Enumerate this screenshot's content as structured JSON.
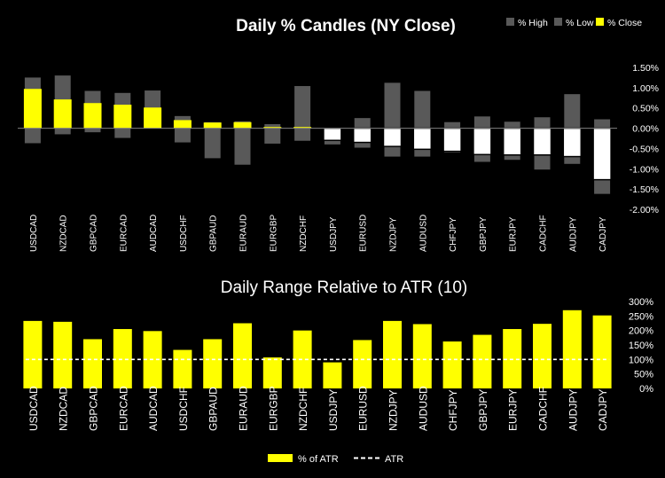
{
  "chart_data": [
    {
      "type": "candlestick-bar",
      "title": "Daily % Candles (NY Close)",
      "legend": [
        "% High",
        "% Low",
        "% Close"
      ],
      "legend_position": "top-right",
      "colors": {
        "range": "#595959",
        "positive_close": "#FFFF00",
        "negative_close": "#FFFFFF",
        "negative_outline": "#000000",
        "text": "#FFFFFF",
        "background": "#000000"
      },
      "categories": [
        "USDCAD",
        "NZDCAD",
        "GBPCAD",
        "EURCAD",
        "AUDCAD",
        "USDCHF",
        "GBPAUD",
        "EURAUD",
        "EURGBP",
        "NZDCHF",
        "USDJPY",
        "EURUSD",
        "NZDJPY",
        "AUDUSD",
        "CHFJPY",
        "GBPJPY",
        "EURJPY",
        "CADCHF",
        "AUDJPY",
        "CADJPY"
      ],
      "high": [
        1.25,
        1.3,
        0.92,
        0.87,
        0.93,
        0.3,
        0.15,
        0.17,
        0.1,
        1.04,
        -0.01,
        0.25,
        1.12,
        0.92,
        0.15,
        0.29,
        0.16,
        0.27,
        0.84,
        0.22
      ],
      "low": [
        -0.37,
        -0.15,
        -0.1,
        -0.24,
        0.0,
        -0.35,
        -0.74,
        -0.9,
        -0.38,
        -0.31,
        -0.4,
        -0.48,
        -0.7,
        -0.7,
        -0.6,
        -0.83,
        -0.78,
        -1.02,
        -0.88,
        -1.62
      ],
      "close": [
        0.97,
        0.71,
        0.62,
        0.58,
        0.51,
        0.2,
        0.14,
        0.15,
        0.03,
        0.03,
        -0.3,
        -0.35,
        -0.45,
        -0.52,
        -0.57,
        -0.65,
        -0.66,
        -0.66,
        -0.7,
        -1.27
      ],
      "ylim": [
        -2.0,
        1.5
      ],
      "yticks": [
        1.5,
        1.0,
        0.5,
        0.0,
        -0.5,
        -1.0,
        -1.5,
        -2.0
      ],
      "ytick_labels": [
        "1.50%",
        "1.00%",
        "0.50%",
        "0.00%",
        "-0.50%",
        "-1.00%",
        "-1.50%",
        "-2.00%"
      ]
    },
    {
      "type": "bar",
      "title": "Daily Range Relative to ATR (10)",
      "legend": [
        "% of ATR",
        "ATR"
      ],
      "legend_position": "bottom",
      "colors": {
        "bar": "#FFFF00",
        "atr_line": "#FFFFFF"
      },
      "categories": [
        "USDCAD",
        "NZDCAD",
        "GBPCAD",
        "EURCAD",
        "AUDCAD",
        "USDCHF",
        "GBPAUD",
        "EURAUD",
        "EURGBP",
        "NZDCHF",
        "USDJPY",
        "EURUSD",
        "NZDJPY",
        "AUDUSD",
        "CHFJPY",
        "GBPJPY",
        "EURJPY",
        "CADCHF",
        "AUDJPY",
        "CADJPY"
      ],
      "values": [
        233,
        230,
        170,
        205,
        198,
        133,
        170,
        225,
        107,
        200,
        90,
        167,
        233,
        222,
        162,
        185,
        205,
        223,
        270,
        252
      ],
      "atr": 100,
      "ylim": [
        0,
        300
      ],
      "yticks": [
        300,
        250,
        200,
        150,
        100,
        50,
        0
      ],
      "ytick_labels": [
        "300%",
        "250%",
        "200%",
        "150%",
        "100%",
        "50%",
        "0%"
      ]
    }
  ]
}
